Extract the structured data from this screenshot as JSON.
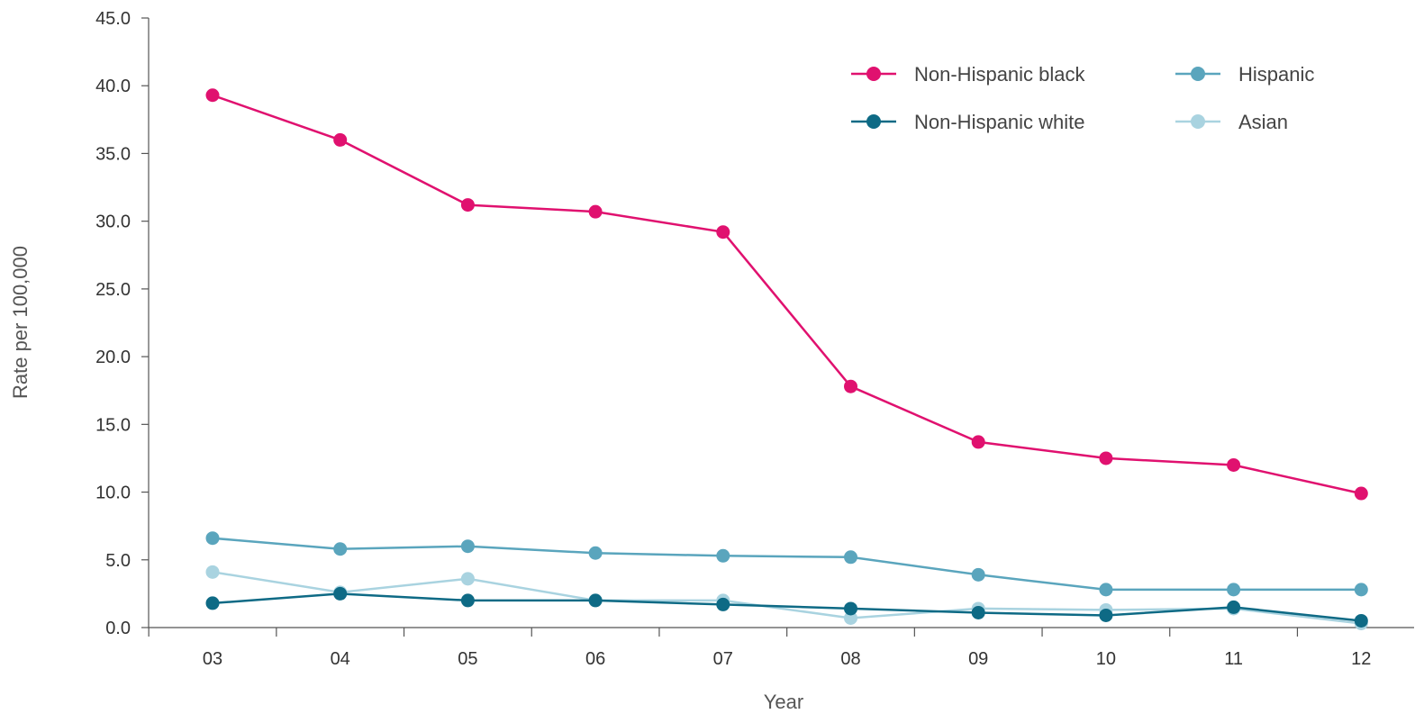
{
  "chart_data": {
    "type": "line",
    "title": "",
    "xlabel": "Year",
    "ylabel": "Rate per 100,000",
    "categories": [
      "03",
      "04",
      "05",
      "06",
      "07",
      "08",
      "09",
      "10",
      "11",
      "12"
    ],
    "ylim": [
      0,
      45
    ],
    "yticks": [
      "0.0",
      "5.0",
      "10.0",
      "15.0",
      "20.0",
      "25.0",
      "30.0",
      "35.0",
      "40.0",
      "45.0"
    ],
    "grid": false,
    "legend_position": "top-right",
    "series": [
      {
        "name": "Non-Hispanic black",
        "color": "#e0116f",
        "values": [
          39.3,
          36.0,
          31.2,
          30.7,
          29.2,
          17.8,
          13.7,
          12.5,
          12.0,
          9.9
        ]
      },
      {
        "name": "Non-Hispanic white",
        "color": "#0e6a85",
        "values": [
          1.8,
          2.5,
          2.0,
          2.0,
          1.7,
          1.4,
          1.1,
          0.9,
          1.5,
          0.5
        ]
      },
      {
        "name": "Hispanic",
        "color": "#5aa5bd",
        "values": [
          6.6,
          5.8,
          6.0,
          5.5,
          5.3,
          5.2,
          3.9,
          2.8,
          2.8,
          2.8
        ]
      },
      {
        "name": "Asian",
        "color": "#a9d3e0",
        "values": [
          4.1,
          2.6,
          3.6,
          2.0,
          2.0,
          0.7,
          1.4,
          1.3,
          1.4,
          0.3
        ]
      }
    ]
  }
}
